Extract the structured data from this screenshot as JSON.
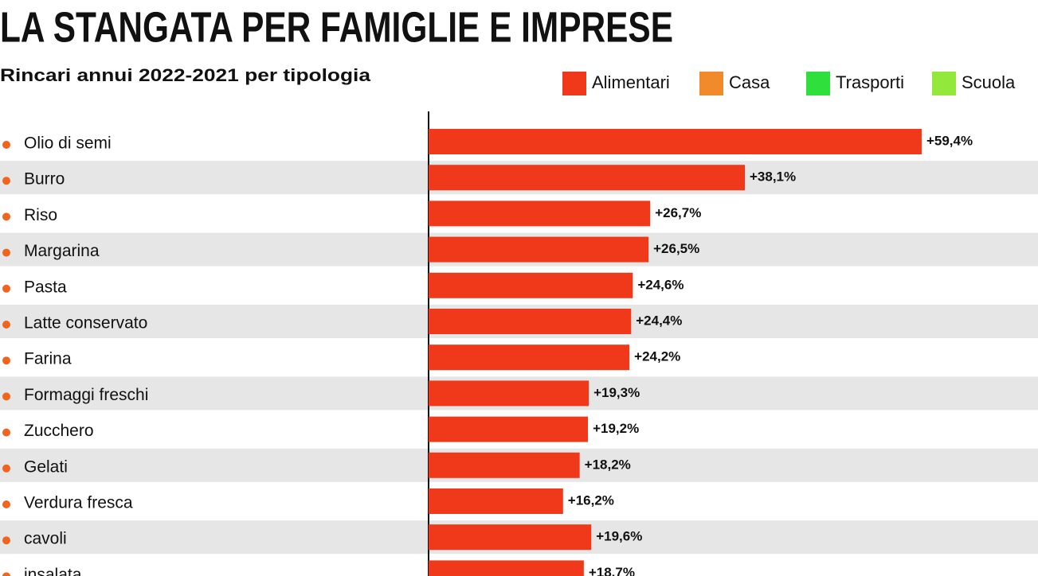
{
  "chart_data": {
    "type": "bar",
    "orientation": "horizontal",
    "title": "LA STANGATA PER FAMIGLIE E IMPRESE",
    "subtitle": "Rincari annui 2022-2021 per tipologia",
    "legend": [
      {
        "name": "Alimentari",
        "color": "#f0391a"
      },
      {
        "name": "Casa",
        "color": "#f08a2a"
      },
      {
        "name": "Trasporti",
        "color": "#2fe03c"
      },
      {
        "name": "Scuola",
        "color": "#93e83c"
      }
    ],
    "categories": [
      "Olio di semi",
      "Burro",
      "Riso",
      "Margarina",
      "Pasta",
      "Latte conservato",
      "Farina",
      "Formaggi freschi",
      "Zucchero",
      "Gelati",
      "Verdura fresca",
      "cavoli",
      "insalata"
    ],
    "values": [
      59.4,
      38.1,
      26.7,
      26.5,
      24.6,
      24.4,
      24.2,
      19.3,
      19.2,
      18.2,
      16.2,
      19.6,
      18.7
    ],
    "value_labels": [
      "+59,4%",
      "+38,1%",
      "+26,7%",
      "+26,5%",
      "+24,6%",
      "+24,4%",
      "+24,2%",
      "+19,3%",
      "+19,2%",
      "+18,2%",
      "+16,2%",
      "+19,6%",
      "+18,7%"
    ],
    "color": "#f0391a"
  }
}
